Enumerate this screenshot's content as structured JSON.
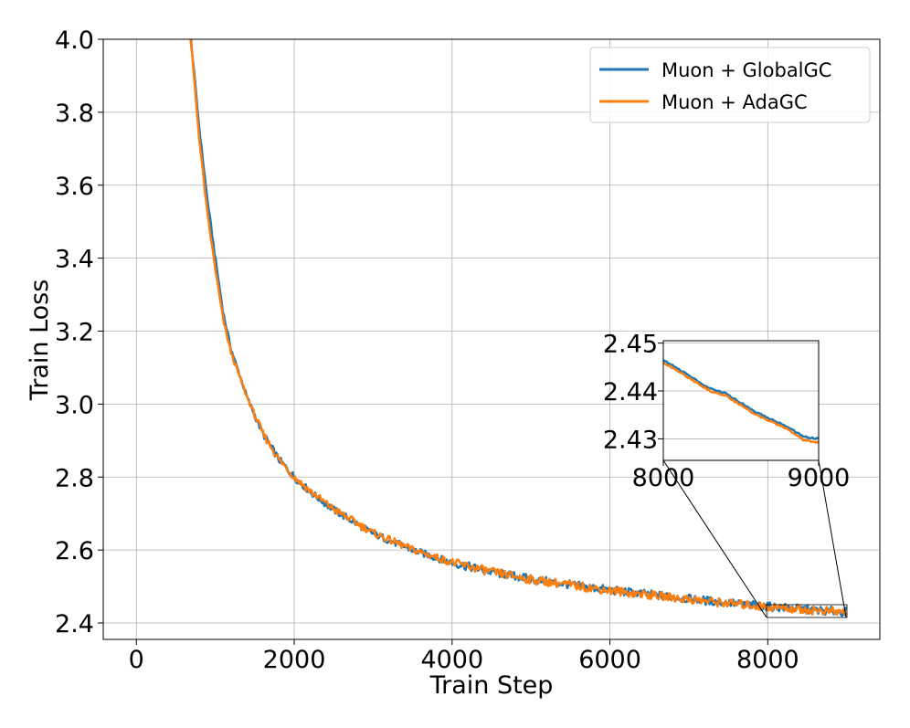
{
  "chart_data": {
    "type": "line",
    "title": "",
    "xlabel": "Train Step",
    "ylabel": "Train Loss",
    "xlim": [
      -420,
      9420
    ],
    "ylim": [
      2.355,
      4.0
    ],
    "xticks": [
      0,
      2000,
      4000,
      6000,
      8000
    ],
    "yticks": [
      2.4,
      2.6,
      2.8,
      3.0,
      3.2,
      3.4,
      3.6,
      3.8,
      4.0
    ],
    "xtick_labels": [
      "0",
      "2000",
      "4000",
      "6000",
      "8000"
    ],
    "ytick_labels": [
      "2.4",
      "2.6",
      "2.8",
      "3.0",
      "3.2",
      "3.4",
      "3.6",
      "3.8",
      "4.0"
    ],
    "grid": true,
    "legend_position": "top-right",
    "series": [
      {
        "name": "Muon + GlobalGC",
        "color": "#1f77b4",
        "x": [
          600,
          700,
          800,
          900,
          1000,
          1100,
          1200,
          1400,
          1600,
          1800,
          2000,
          2200,
          2500,
          3000,
          3500,
          4000,
          4500,
          5000,
          5500,
          6000,
          6500,
          7000,
          7500,
          8000,
          8500,
          9000
        ],
        "y": [
          4.2,
          3.98,
          3.75,
          3.56,
          3.4,
          3.25,
          3.15,
          3.02,
          2.92,
          2.85,
          2.8,
          2.76,
          2.71,
          2.645,
          2.6,
          2.565,
          2.54,
          2.52,
          2.505,
          2.49,
          2.478,
          2.466,
          2.455,
          2.445,
          2.437,
          2.43
        ]
      },
      {
        "name": "Muon + AdaGC",
        "color": "#ff7f0e",
        "x": [
          600,
          700,
          800,
          900,
          1000,
          1100,
          1200,
          1400,
          1600,
          1800,
          2000,
          2200,
          2500,
          3000,
          3500,
          4000,
          4500,
          5000,
          5500,
          6000,
          6500,
          7000,
          7500,
          8000,
          8500,
          9000
        ],
        "y": [
          4.2,
          3.97,
          3.72,
          3.52,
          3.37,
          3.23,
          3.14,
          3.02,
          2.92,
          2.85,
          2.8,
          2.762,
          2.712,
          2.647,
          2.601,
          2.566,
          2.54,
          2.519,
          2.504,
          2.489,
          2.477,
          2.465,
          2.454,
          2.444,
          2.436,
          2.429
        ]
      }
    ],
    "inset": {
      "xlim": [
        8000,
        9000
      ],
      "ylim": [
        2.4255,
        2.4505
      ],
      "xticks": [
        8000,
        9000
      ],
      "yticks": [
        2.43,
        2.44,
        2.45
      ],
      "xtick_labels": [
        "8000",
        "9000"
      ],
      "ytick_labels": [
        "2.43",
        "2.44",
        "2.45"
      ],
      "series": [
        {
          "name": "Muon + GlobalGC",
          "x": [
            8000,
            8100,
            8200,
            8300,
            8400,
            8500,
            8600,
            8700,
            8800,
            8900,
            9000
          ],
          "y": [
            2.4465,
            2.4445,
            2.4425,
            2.4405,
            2.4395,
            2.4375,
            2.4355,
            2.434,
            2.4325,
            2.4305,
            2.43
          ]
        },
        {
          "name": "Muon + AdaGC",
          "x": [
            8000,
            8100,
            8200,
            8300,
            8400,
            8500,
            8600,
            8700,
            8800,
            8900,
            9000
          ],
          "y": [
            2.446,
            2.444,
            2.442,
            2.44,
            2.439,
            2.437,
            2.435,
            2.4335,
            2.432,
            2.4298,
            2.4292
          ]
        }
      ]
    }
  }
}
